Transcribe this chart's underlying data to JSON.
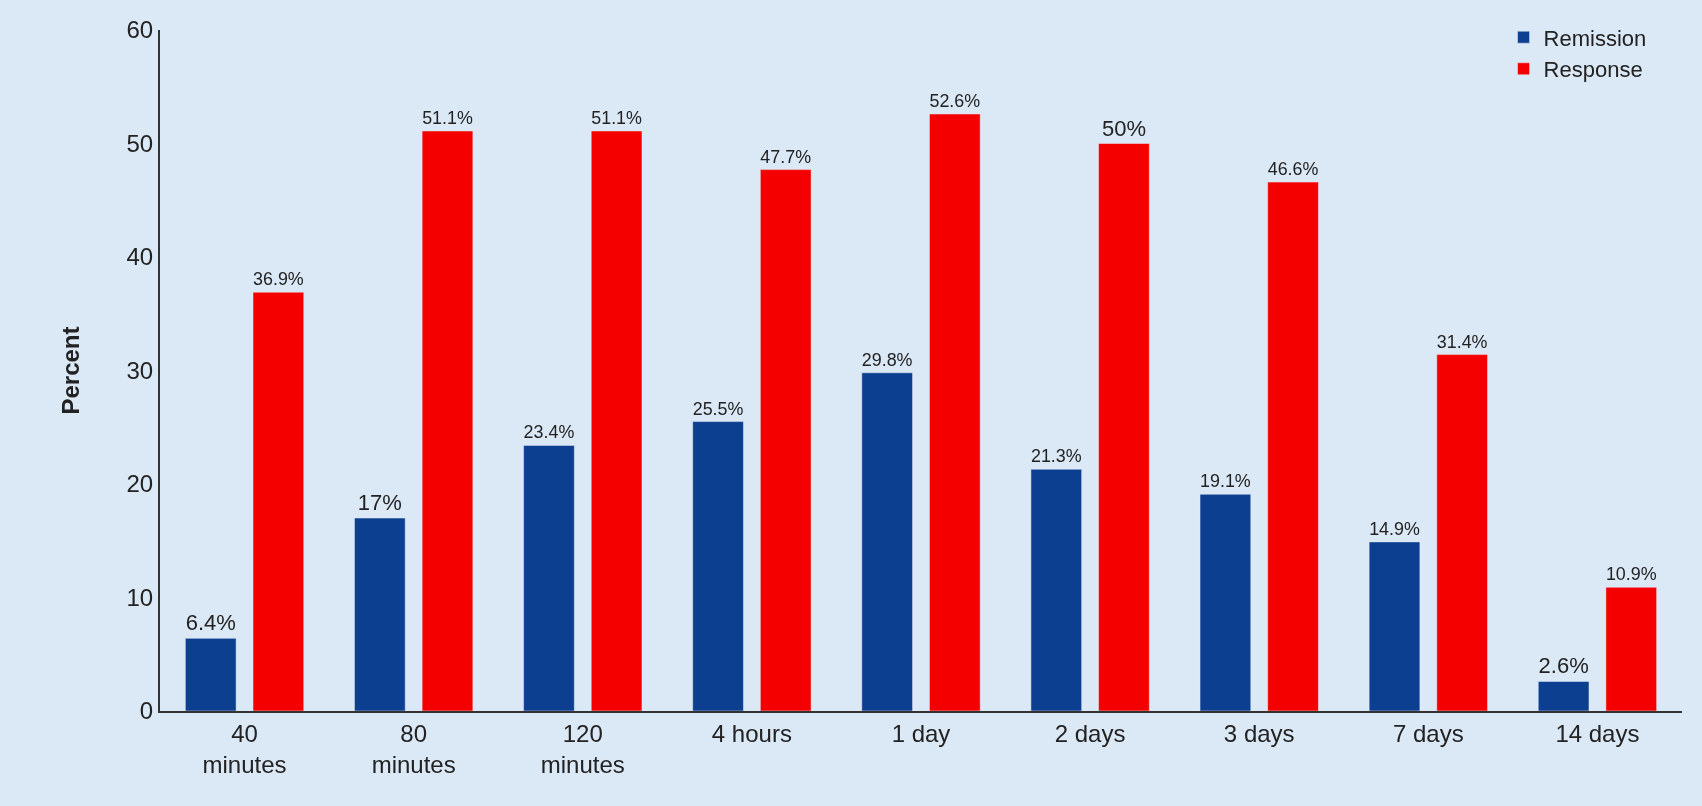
{
  "chart_data": {
    "type": "bar",
    "ylabel": "Percent",
    "categories": [
      "40\nminutes",
      "80\nminutes",
      "120\nminutes",
      "4 hours",
      "1 day",
      "2 days",
      "3 days",
      "7 days",
      "14 days"
    ],
    "series": [
      {
        "name": "Remission",
        "color": "#0d3f91",
        "values": [
          6.4,
          17,
          23.4,
          25.5,
          29.8,
          21.3,
          19.1,
          14.9,
          2.6
        ],
        "value_labels": [
          "6.4%",
          "17%",
          "23.4%",
          "25.5%",
          "29.8%",
          "21.3%",
          "19.1%",
          "14.9%",
          "2.6%"
        ]
      },
      {
        "name": "Response",
        "color": "#f40000",
        "values": [
          36.9,
          51.1,
          51.1,
          47.7,
          52.6,
          50,
          46.6,
          31.4,
          10.9
        ],
        "value_labels": [
          "36.9%",
          "51.1%",
          "51.1%",
          "47.7%",
          "52.6%",
          "50%",
          "46.6%",
          "31.4%",
          "10.9%"
        ]
      }
    ],
    "ylim": [
      0,
      60
    ],
    "yticks": [
      0,
      10,
      20,
      30,
      40,
      50,
      60
    ],
    "grid": false,
    "legend": "top right"
  }
}
